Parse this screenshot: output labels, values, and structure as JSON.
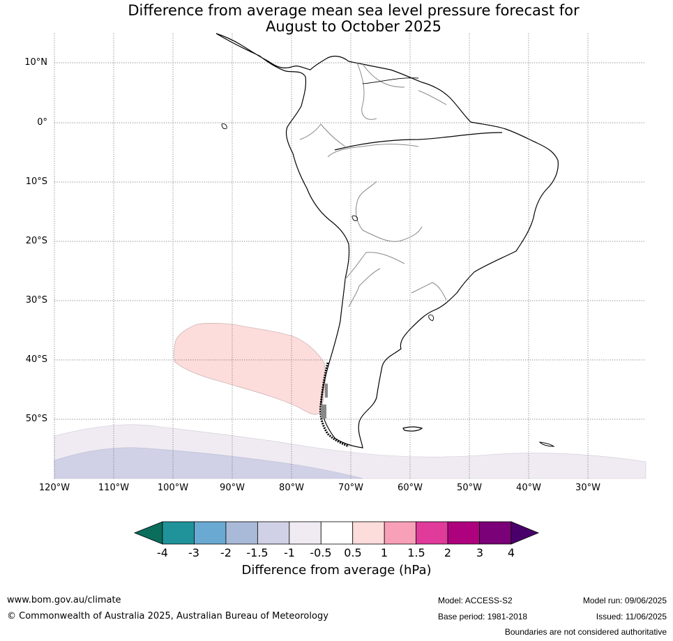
{
  "title_line1": "Difference from average mean sea level pressure forecast for",
  "title_line2": "August to October 2025",
  "lat_labels": [
    "10°N",
    "0°",
    "10°S",
    "20°S",
    "30°S",
    "40°S",
    "50°S"
  ],
  "lon_labels": [
    "120°W",
    "110°W",
    "100°W",
    "90°W",
    "80°W",
    "70°W",
    "60°W",
    "50°W",
    "40°W",
    "30°W"
  ],
  "colorbar": {
    "title": "Difference from average (hPa)",
    "ticks": [
      "-4",
      "-3",
      "-2",
      "-1.5",
      "-1",
      "-0.5",
      "0.5",
      "1",
      "1.5",
      "2",
      "3",
      "4"
    ],
    "colors": {
      "lt_-4": "#0b6d5b",
      "-4_-3": "#1f9399",
      "-3_-2": "#6aaad2",
      "-2_-1.5": "#a9b9d8",
      "-1.5_-1": "#d0d1e6",
      "-1_-0.5": "#f0ebf2",
      "-0.5_0.5": "#ffffff",
      "0.5_1": "#fddcdc",
      "1_1.5": "#f9a0b9",
      "1.5_2": "#e03a9b",
      "2_3": "#ae017e",
      "3_4": "#7a0177",
      "gt_4": "#49006a"
    }
  },
  "footer": {
    "website": "www.bom.gov.au/climate",
    "copyright": "© Commonwealth of Australia 2025, Australian Bureau of Meteorology",
    "model": "Model: ACCESS-S2",
    "base_period": "Base period: 1981-2018",
    "model_run": "Model run: 09/06/2025",
    "issued": "Issued: 11/06/2025",
    "disclaimer": "Boundaries are not considered authoritative"
  }
}
